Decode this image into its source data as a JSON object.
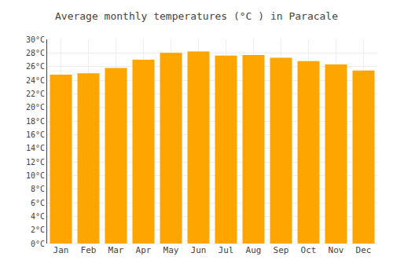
{
  "chart_data": {
    "type": "bar",
    "title": "Average monthly temperatures (°C ) in Paracale",
    "categories": [
      "Jan",
      "Feb",
      "Mar",
      "Apr",
      "May",
      "Jun",
      "Jul",
      "Aug",
      "Sep",
      "Oct",
      "Nov",
      "Dec"
    ],
    "values": [
      24.8,
      25.0,
      25.8,
      27.0,
      28.0,
      28.2,
      27.6,
      27.7,
      27.3,
      26.8,
      26.3,
      25.4
    ],
    "color": "#FFA500",
    "ylim": [
      0,
      30
    ],
    "yticks": [
      {
        "value": 0,
        "label": "0°C"
      },
      {
        "value": 2,
        "label": "2°C"
      },
      {
        "value": 4,
        "label": "4°C"
      },
      {
        "value": 6,
        "label": "6°C"
      },
      {
        "value": 8,
        "label": "8°C"
      },
      {
        "value": 10,
        "label": "10°C"
      },
      {
        "value": 12,
        "label": "12°C"
      },
      {
        "value": 14,
        "label": "14°C"
      },
      {
        "value": 16,
        "label": "16°C"
      },
      {
        "value": 18,
        "label": "18°C"
      },
      {
        "value": 20,
        "label": "20°C"
      },
      {
        "value": 22,
        "label": "22°C"
      },
      {
        "value": 24,
        "label": "24°C"
      },
      {
        "value": 26,
        "label": "26°C"
      },
      {
        "value": 28,
        "label": "28°C"
      },
      {
        "value": 30,
        "label": "30°C"
      }
    ],
    "grid": true
  }
}
